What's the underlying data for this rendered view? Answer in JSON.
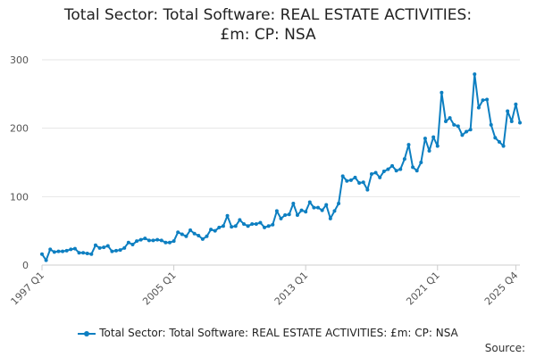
{
  "chart_data": {
    "type": "line",
    "title_line1": "Total Sector: Total Software: REAL ESTATE ACTIVITIES:",
    "title_line2": "£m: CP: NSA",
    "xlabel": "",
    "ylabel": "",
    "ylim": [
      0,
      300
    ],
    "yticks": [
      0,
      100,
      200,
      300
    ],
    "x_tick_labels": [
      "1997 Q1",
      "2005 Q1",
      "2013 Q1",
      "2021 Q1",
      "2025 Q4"
    ],
    "x_tick_index": [
      0,
      32,
      64,
      96,
      115
    ],
    "grid": true,
    "legend_position": "bottom",
    "color": "#0d7fc1",
    "series": [
      {
        "name": "Total Sector: Total Software: REAL ESTATE ACTIVITIES: £m: CP: NSA",
        "values": [
          16,
          7,
          23,
          19,
          20,
          20,
          21,
          23,
          24,
          18,
          18,
          17,
          16,
          29,
          25,
          26,
          28,
          20,
          21,
          22,
          25,
          33,
          30,
          35,
          37,
          39,
          36,
          36,
          37,
          36,
          33,
          33,
          35,
          48,
          45,
          42,
          51,
          46,
          43,
          38,
          42,
          52,
          50,
          55,
          57,
          72,
          56,
          57,
          66,
          60,
          57,
          60,
          60,
          62,
          55,
          57,
          59,
          79,
          68,
          73,
          74,
          90,
          73,
          80,
          78,
          92,
          84,
          84,
          80,
          88,
          68,
          79,
          90,
          130,
          123,
          124,
          128,
          120,
          121,
          110,
          133,
          135,
          128,
          137,
          140,
          145,
          138,
          140,
          155,
          176,
          143,
          138,
          150,
          185,
          167,
          187,
          174,
          252,
          210,
          215,
          205,
          203,
          190,
          195,
          198,
          279,
          230,
          241,
          242,
          205,
          186,
          180,
          174,
          225,
          210,
          235,
          208
        ]
      }
    ]
  },
  "legend": {
    "label": "Total Sector: Total Software: REAL ESTATE ACTIVITIES: £m: CP: NSA"
  },
  "source": {
    "label": "Source:"
  }
}
